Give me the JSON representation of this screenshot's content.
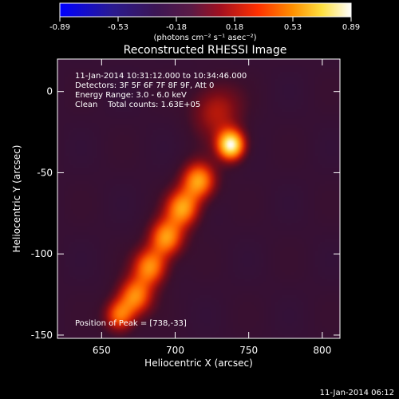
{
  "chart_data": {
    "type": "heatmap",
    "title": "Reconstructed RHESSI Image",
    "xlabel": "Heliocentric X (arcsec)",
    "ylabel": "Heliocentric Y (arcsec)",
    "xlim": [
      620,
      812
    ],
    "ylim": [
      -152,
      20
    ],
    "x_ticks": [
      650,
      700,
      750,
      800
    ],
    "y_ticks": [
      0,
      -50,
      -100,
      -150
    ],
    "colorbar": {
      "min": -0.89,
      "max": 0.89,
      "ticks": [
        "-0.89",
        "-0.53",
        "-0.18",
        "0.18",
        "0.53",
        "0.89"
      ],
      "label": "(photons cm⁻² s⁻¹ asec⁻²)",
      "colormap": "blue-purple-red-orange-yellow-white"
    },
    "annotations": [
      "11-Jan-2014 10:31:12.000 to 10:34:46.000",
      "Detectors: 3F 5F 6F 7F 8F 9F, Att 0",
      "Energy Range: 3.0 - 6.0 keV",
      "Clean    Total counts: 1.63E+05"
    ],
    "peak_label": "Position of Peak = [738,-33]",
    "peak": [
      738,
      -33
    ],
    "sources": [
      {
        "x": 738,
        "y": -33,
        "sigma": 6.5,
        "amp": 0.89
      },
      {
        "x": 716,
        "y": -55,
        "sigma": 8,
        "amp": 0.62
      },
      {
        "x": 705,
        "y": -72,
        "sigma": 8,
        "amp": 0.6
      },
      {
        "x": 694,
        "y": -90,
        "sigma": 8,
        "amp": 0.6
      },
      {
        "x": 683,
        "y": -108,
        "sigma": 8,
        "amp": 0.57
      },
      {
        "x": 673,
        "y": -126,
        "sigma": 8,
        "amp": 0.55
      },
      {
        "x": 662,
        "y": -138,
        "sigma": 7,
        "amp": 0.5
      },
      {
        "x": 728,
        "y": -12,
        "sigma": 12,
        "amp": 0.3
      }
    ],
    "timestamp": "11-Jan-2014 06:12"
  }
}
